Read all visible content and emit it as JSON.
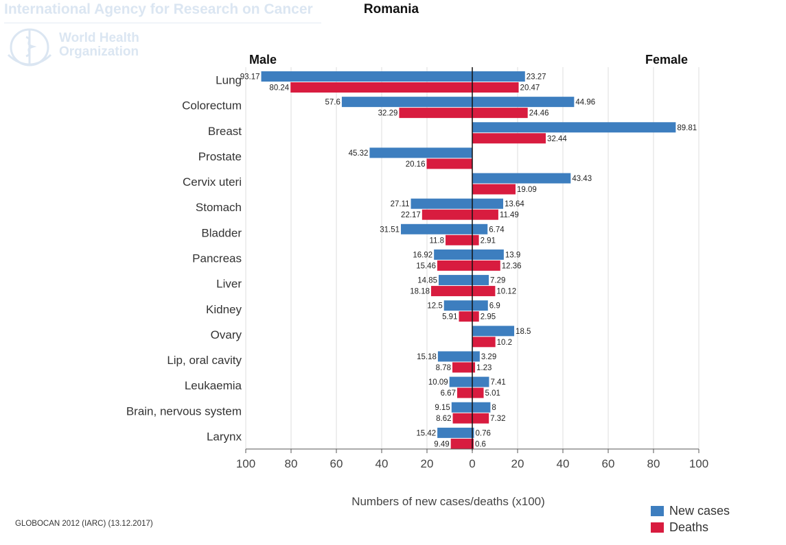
{
  "watermark": {
    "agency": "International Agency for Research on Cancer",
    "org": "World Health Organization"
  },
  "footer": "GLOBOCAN 2012 (IARC) (13.12.2017)",
  "chart_data": {
    "type": "bar",
    "orientation": "horizontal-population-pyramid",
    "title": "Romania",
    "left_header": "Male",
    "right_header": "Female",
    "xlabel": "Numbers of new cases/deaths (x100)",
    "xlim": [
      -100,
      100
    ],
    "ticks": [
      -100,
      -80,
      -60,
      -40,
      -20,
      0,
      20,
      40,
      60,
      80,
      100
    ],
    "tick_labels": [
      "100",
      "80",
      "60",
      "40",
      "20",
      "0",
      "20",
      "40",
      "60",
      "80",
      "100"
    ],
    "categories": [
      "Lung",
      "Colorectum",
      "Breast",
      "Prostate",
      "Cervix uteri",
      "Stomach",
      "Bladder",
      "Pancreas",
      "Liver",
      "Kidney",
      "Ovary",
      "Lip, oral cavity",
      "Leukaemia",
      "Brain, nervous system",
      "Larynx"
    ],
    "series": [
      {
        "name": "Male new cases",
        "legend": "New cases",
        "color": "#3d7ebf",
        "side": "left",
        "values": [
          93.17,
          57.6,
          null,
          45.32,
          null,
          27.11,
          31.51,
          16.92,
          14.85,
          12.5,
          null,
          15.18,
          10.09,
          9.15,
          15.42
        ],
        "labels": [
          "93.17",
          "57.6",
          "",
          "45.32",
          "",
          "27.11",
          "31.51",
          "16.92",
          "14.85",
          "12.5",
          "",
          "15.18",
          "10.09",
          "9.15",
          "15.42"
        ]
      },
      {
        "name": "Male deaths",
        "legend": "Deaths",
        "color": "#d81c3f",
        "side": "left",
        "values": [
          80.24,
          32.29,
          null,
          20.16,
          null,
          22.17,
          11.8,
          15.46,
          18.18,
          5.91,
          null,
          8.78,
          6.67,
          8.62,
          9.49
        ],
        "labels": [
          "80.24",
          "32.29",
          "",
          "20.16",
          "",
          "22.17",
          "11.8",
          "15.46",
          "18.18",
          "5.91",
          "",
          "8.78",
          "6.67",
          "8.62",
          "9.49"
        ]
      },
      {
        "name": "Female new cases",
        "legend": "New cases",
        "color": "#3d7ebf",
        "side": "right",
        "values": [
          23.27,
          44.96,
          89.81,
          null,
          43.43,
          13.64,
          6.74,
          13.9,
          7.29,
          6.9,
          18.5,
          3.29,
          7.41,
          8,
          0.76
        ],
        "labels": [
          "23.27",
          "44.96",
          "89.81",
          "",
          "43.43",
          "13.64",
          "6.74",
          "13.9",
          "7.29",
          "6.9",
          "18.5",
          "3.29",
          "7.41",
          "8",
          "0.76"
        ]
      },
      {
        "name": "Female deaths",
        "legend": "Deaths",
        "color": "#d81c3f",
        "side": "right",
        "values": [
          20.47,
          24.46,
          32.44,
          null,
          19.09,
          11.49,
          2.91,
          12.36,
          10.12,
          2.95,
          10.2,
          1.23,
          5.01,
          7.32,
          0.6
        ],
        "labels": [
          "20.47",
          "24.46",
          "32.44",
          "",
          "19.09",
          "11.49",
          "2.91",
          "12.36",
          "10.12",
          "2.95",
          "10.2",
          "1.23",
          "5.01",
          "7.32",
          "0.6"
        ]
      }
    ],
    "legend": [
      {
        "label": "New cases",
        "color": "#3d7ebf"
      },
      {
        "label": "Deaths",
        "color": "#d81c3f"
      }
    ],
    "grid": true,
    "legend_position": "bottom-right"
  }
}
